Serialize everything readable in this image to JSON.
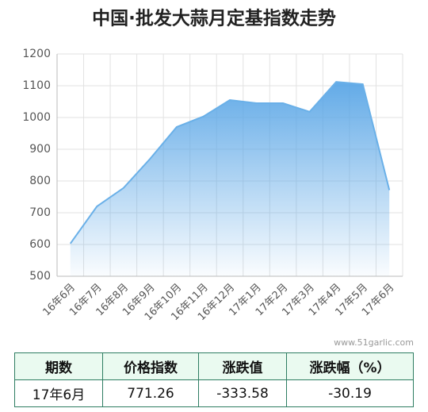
{
  "chart_data": {
    "type": "area",
    "title": "中国·批发大蒜月定基指数走势",
    "categories": [
      "16年6月",
      "16年7月",
      "16年8月",
      "16年9月",
      "16年10月",
      "16年11月",
      "16年12月",
      "17年1月",
      "17年2月",
      "17年3月",
      "17年4月",
      "17年5月",
      "17年6月"
    ],
    "values": [
      603,
      720,
      778,
      870,
      970,
      1003,
      1055,
      1045,
      1045,
      1018,
      1112,
      1104.84,
      771.26
    ],
    "color": "#6ab0e8",
    "ylim": [
      500,
      1200
    ],
    "yticks": [
      500,
      600,
      700,
      800,
      900,
      1000,
      1100,
      1200
    ],
    "grid": true
  },
  "watermark": "www.51garlic.com",
  "table": {
    "header": [
      "期数",
      "价格指数",
      "涨跌值",
      "涨跌幅（%）"
    ],
    "rows": [
      [
        "17年6月",
        771.26,
        -333.58,
        -30.19
      ]
    ]
  }
}
